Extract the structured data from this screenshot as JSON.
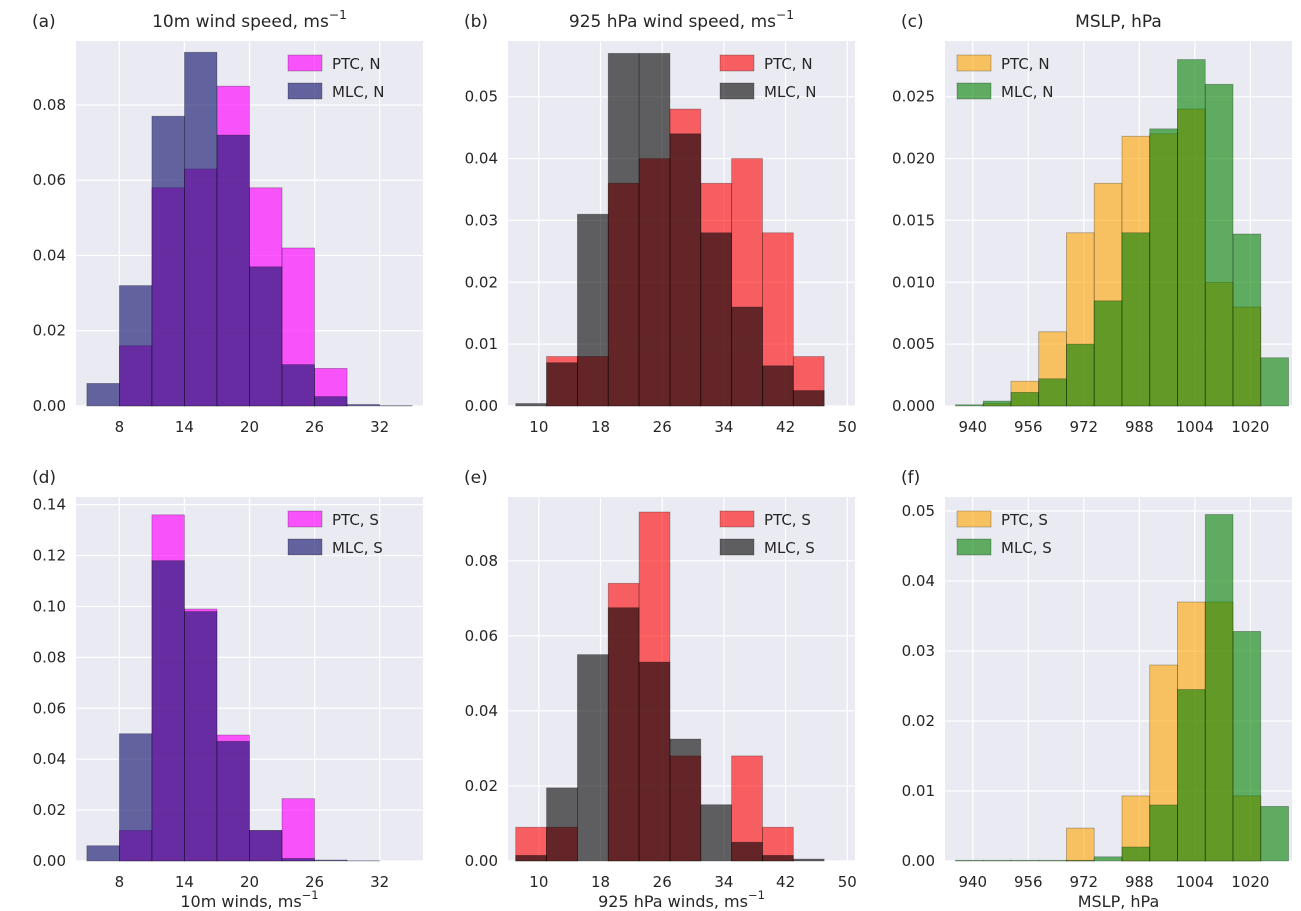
{
  "colors": {
    "background": "#eaeaf2",
    "grid": "#ffffff",
    "ptc_10m": "#ff00ff",
    "mlc_10m": "#191970",
    "ptc_925": "#ff0000",
    "mlc_925": "#000000",
    "ptc_mslp": "#ffa500",
    "mlc_mslp": "#008000"
  },
  "chart_data": [
    {
      "type": "bar",
      "subtype": "overlaid-histogram",
      "panel_label": "(a)",
      "title": "10m wind speed, ms",
      "title_sup": "−1",
      "xlabel": "",
      "xlabel_sup": "",
      "xlim": [
        4,
        36
      ],
      "ylim": [
        0,
        0.097
      ],
      "xticks": [
        8,
        14,
        20,
        26,
        32
      ],
      "yticks": [
        0.0,
        0.02,
        0.04,
        0.06,
        0.08
      ],
      "ytick_labels": [
        "0.00",
        "0.02",
        "0.04",
        "0.06",
        "0.08"
      ],
      "grid": true,
      "legend_position": "top-right",
      "bin_edges": [
        5,
        8,
        11,
        14,
        17,
        20,
        23,
        26,
        29,
        32,
        35
      ],
      "series": [
        {
          "name": "PTC, N",
          "color": "#ff00ff",
          "opacity": 0.65,
          "values": [
            0.0,
            0.016,
            0.058,
            0.063,
            0.085,
            0.058,
            0.042,
            0.01,
            0.0,
            0.0
          ]
        },
        {
          "name": "MLC, N",
          "color": "#191970",
          "opacity": 0.65,
          "values": [
            0.006,
            0.032,
            0.077,
            0.094,
            0.072,
            0.037,
            0.011,
            0.0025,
            0.0004,
            0.0001
          ]
        }
      ]
    },
    {
      "type": "bar",
      "subtype": "overlaid-histogram",
      "panel_label": "(b)",
      "title": "925 hPa wind speed, ms",
      "title_sup": "−1",
      "xlabel": "",
      "xlabel_sup": "",
      "xlim": [
        6,
        51
      ],
      "ylim": [
        0,
        0.059
      ],
      "xticks": [
        10,
        18,
        26,
        34,
        42,
        50
      ],
      "yticks": [
        0.0,
        0.01,
        0.02,
        0.03,
        0.04,
        0.05
      ],
      "ytick_labels": [
        "0.00",
        "0.01",
        "0.02",
        "0.03",
        "0.04",
        "0.05"
      ],
      "grid": true,
      "legend_position": "top-right",
      "bin_edges": [
        7,
        11,
        15,
        19,
        23,
        27,
        31,
        35,
        39,
        43,
        47
      ],
      "series": [
        {
          "name": "PTC, N",
          "color": "#ff0000",
          "opacity": 0.6,
          "values": [
            0.0,
            0.008,
            0.008,
            0.036,
            0.04,
            0.048,
            0.036,
            0.04,
            0.028,
            0.008
          ]
        },
        {
          "name": "MLC, N",
          "color": "#000000",
          "opacity": 0.6,
          "values": [
            0.0004,
            0.007,
            0.031,
            0.057,
            0.057,
            0.044,
            0.028,
            0.016,
            0.0065,
            0.0025
          ]
        }
      ]
    },
    {
      "type": "bar",
      "subtype": "overlaid-histogram",
      "panel_label": "(c)",
      "title": "MSLP, hPa",
      "title_sup": "",
      "xlabel": "",
      "xlabel_sup": "",
      "xlim": [
        932,
        1032
      ],
      "ylim": [
        0,
        0.0295
      ],
      "xticks": [
        940,
        956,
        972,
        988,
        1004,
        1020
      ],
      "yticks": [
        0.0,
        0.005,
        0.01,
        0.015,
        0.02,
        0.025
      ],
      "ytick_labels": [
        "0.000",
        "0.005",
        "0.010",
        "0.015",
        "0.020",
        "0.025"
      ],
      "grid": true,
      "legend_position": "top-left",
      "bin_edges": [
        935,
        943,
        951,
        959,
        967,
        975,
        983,
        991,
        999,
        1007,
        1015,
        1023,
        1031
      ],
      "series": [
        {
          "name": "PTC, N",
          "color": "#ffa500",
          "opacity": 0.6,
          "values": [
            0.0,
            0.0002,
            0.002,
            0.006,
            0.014,
            0.018,
            0.0218,
            0.022,
            0.024,
            0.01,
            0.008,
            0.0
          ]
        },
        {
          "name": "MLC, N",
          "color": "#008000",
          "opacity": 0.6,
          "values": [
            0.0001,
            0.0004,
            0.0011,
            0.0022,
            0.005,
            0.0085,
            0.014,
            0.0224,
            0.028,
            0.026,
            0.0139,
            0.0039
          ]
        }
      ]
    },
    {
      "type": "bar",
      "subtype": "overlaid-histogram",
      "panel_label": "(d)",
      "title": "",
      "title_sup": "",
      "xlabel": "10m winds, ms",
      "xlabel_sup": "−1",
      "xlim": [
        4,
        36
      ],
      "ylim": [
        0,
        0.143
      ],
      "xticks": [
        8,
        14,
        20,
        26,
        32
      ],
      "yticks": [
        0.0,
        0.02,
        0.04,
        0.06,
        0.08,
        0.1,
        0.12,
        0.14
      ],
      "ytick_labels": [
        "0.00",
        "0.02",
        "0.04",
        "0.06",
        "0.08",
        "0.10",
        "0.12",
        "0.14"
      ],
      "grid": true,
      "legend_position": "top-right",
      "bin_edges": [
        5,
        8,
        11,
        14,
        17,
        20,
        23,
        26,
        29,
        32,
        35
      ],
      "series": [
        {
          "name": "PTC, S",
          "color": "#ff00ff",
          "opacity": 0.65,
          "values": [
            0.0,
            0.012,
            0.136,
            0.099,
            0.0495,
            0.012,
            0.0245,
            0.0,
            0.0,
            0.0
          ]
        },
        {
          "name": "MLC, S",
          "color": "#191970",
          "opacity": 0.65,
          "values": [
            0.006,
            0.05,
            0.118,
            0.098,
            0.047,
            0.012,
            0.001,
            0.0004,
            0.0001,
            0.0
          ]
        }
      ]
    },
    {
      "type": "bar",
      "subtype": "overlaid-histogram",
      "panel_label": "(e)",
      "title": "",
      "title_sup": "",
      "xlabel": "925 hPa winds, ms",
      "xlabel_sup": "−1",
      "xlim": [
        6,
        51
      ],
      "ylim": [
        0,
        0.097
      ],
      "xticks": [
        10,
        18,
        26,
        34,
        42,
        50
      ],
      "yticks": [
        0.0,
        0.02,
        0.04,
        0.06,
        0.08
      ],
      "ytick_labels": [
        "0.00",
        "0.02",
        "0.04",
        "0.06",
        "0.08"
      ],
      "grid": true,
      "legend_position": "top-right",
      "bin_edges": [
        7,
        11,
        15,
        19,
        23,
        27,
        31,
        35,
        39,
        43,
        47
      ],
      "series": [
        {
          "name": "PTC, S",
          "color": "#ff0000",
          "opacity": 0.6,
          "values": [
            0.009,
            0.009,
            0.0,
            0.074,
            0.093,
            0.028,
            0.0,
            0.028,
            0.009,
            0.0
          ]
        },
        {
          "name": "MLC, S",
          "color": "#000000",
          "opacity": 0.6,
          "values": [
            0.0015,
            0.0195,
            0.055,
            0.0675,
            0.053,
            0.0325,
            0.015,
            0.005,
            0.0015,
            0.0005
          ]
        }
      ]
    },
    {
      "type": "bar",
      "subtype": "overlaid-histogram",
      "panel_label": "(f)",
      "title": "",
      "title_sup": "",
      "xlabel": "MSLP, hPa",
      "xlabel_sup": "",
      "xlim": [
        932,
        1032
      ],
      "ylim": [
        0,
        0.052
      ],
      "xticks": [
        940,
        956,
        972,
        988,
        1004,
        1020
      ],
      "yticks": [
        0.0,
        0.01,
        0.02,
        0.03,
        0.04,
        0.05
      ],
      "ytick_labels": [
        "0.00",
        "0.01",
        "0.02",
        "0.03",
        "0.04",
        "0.05"
      ],
      "grid": true,
      "legend_position": "top-left",
      "bin_edges": [
        935,
        943,
        951,
        959,
        967,
        975,
        983,
        991,
        999,
        1007,
        1015,
        1023,
        1031
      ],
      "series": [
        {
          "name": "PTC, S",
          "color": "#ffa500",
          "opacity": 0.6,
          "values": [
            0.0,
            0.0,
            0.0,
            0.0,
            0.0047,
            0.0,
            0.0093,
            0.028,
            0.037,
            0.037,
            0.0093,
            0.0
          ]
        },
        {
          "name": "MLC, S",
          "color": "#008000",
          "opacity": 0.6,
          "values": [
            0.0001,
            0.0001,
            0.0001,
            0.0001,
            0.0001,
            0.0006,
            0.002,
            0.008,
            0.0245,
            0.0495,
            0.0328,
            0.0078
          ]
        }
      ]
    }
  ]
}
